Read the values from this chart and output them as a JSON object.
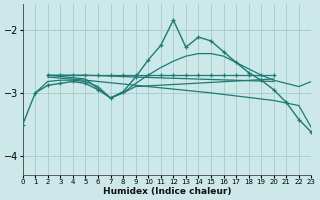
{
  "xlabel": "Humidex (Indice chaleur)",
  "background_color": "#cce8e8",
  "grid_color": "#a8d0d0",
  "line_color": "#1e7a72",
  "xlim": [
    0,
    23
  ],
  "ylim": [
    -4.3,
    -1.6
  ],
  "yticks": [
    -4,
    -3,
    -2
  ],
  "xticks": [
    0,
    1,
    2,
    3,
    4,
    5,
    6,
    7,
    8,
    9,
    10,
    11,
    12,
    13,
    14,
    15,
    16,
    17,
    18,
    19,
    20,
    21,
    22,
    23
  ],
  "series": [
    {
      "x": [
        2,
        3,
        4,
        5,
        6,
        7,
        8,
        9,
        10,
        11,
        12,
        13,
        14,
        15,
        16,
        17,
        18,
        19,
        20
      ],
      "y": [
        -2.72,
        -2.72,
        -2.72,
        -2.72,
        -2.72,
        -2.72,
        -2.72,
        -2.72,
        -2.72,
        -2.72,
        -2.72,
        -2.72,
        -2.72,
        -2.72,
        -2.72,
        -2.72,
        -2.72,
        -2.72,
        -2.72
      ],
      "marker": true,
      "lw": 0.9
    },
    {
      "x": [
        2,
        5,
        9,
        20
      ],
      "y": [
        -2.72,
        -2.72,
        -2.75,
        -2.82
      ],
      "marker": false,
      "lw": 0.9
    },
    {
      "x": [
        2,
        5,
        7,
        8,
        9,
        20
      ],
      "y": [
        -2.72,
        -2.78,
        -3.08,
        -3.0,
        -2.9,
        -2.78
      ],
      "marker": false,
      "lw": 0.9
    },
    {
      "x": [
        1,
        2,
        3,
        4,
        5,
        6,
        7,
        8,
        9,
        10,
        11,
        12,
        13,
        14,
        15,
        16,
        17,
        18,
        19,
        20,
        21,
        22,
        23
      ],
      "y": [
        -3.0,
        -2.82,
        -2.8,
        -2.8,
        -2.82,
        -2.9,
        -3.08,
        -3.0,
        -2.85,
        -2.72,
        -2.6,
        -2.5,
        -2.42,
        -2.38,
        -2.38,
        -2.42,
        -2.52,
        -2.62,
        -2.72,
        -2.8,
        -2.85,
        -2.9,
        -2.82
      ],
      "marker": false,
      "lw": 0.9
    },
    {
      "x": [
        2,
        5,
        10,
        15,
        20,
        22,
        23
      ],
      "y": [
        -2.75,
        -2.8,
        -2.9,
        -3.0,
        -3.12,
        -3.2,
        -3.55
      ],
      "marker": false,
      "lw": 0.9
    },
    {
      "x": [
        0,
        1,
        2,
        3,
        4,
        5,
        6,
        7,
        8,
        9,
        10,
        11,
        12,
        13,
        14,
        15,
        16,
        17,
        18,
        19,
        20,
        21,
        22,
        23
      ],
      "y": [
        -3.5,
        -3.0,
        -2.88,
        -2.85,
        -2.82,
        -2.85,
        -2.95,
        -3.08,
        -2.98,
        -2.75,
        -2.48,
        -2.25,
        -1.85,
        -2.28,
        -2.12,
        -2.18,
        -2.35,
        -2.52,
        -2.68,
        -2.8,
        -2.95,
        -3.15,
        -3.42,
        -3.62
      ],
      "marker": true,
      "lw": 1.0
    }
  ]
}
